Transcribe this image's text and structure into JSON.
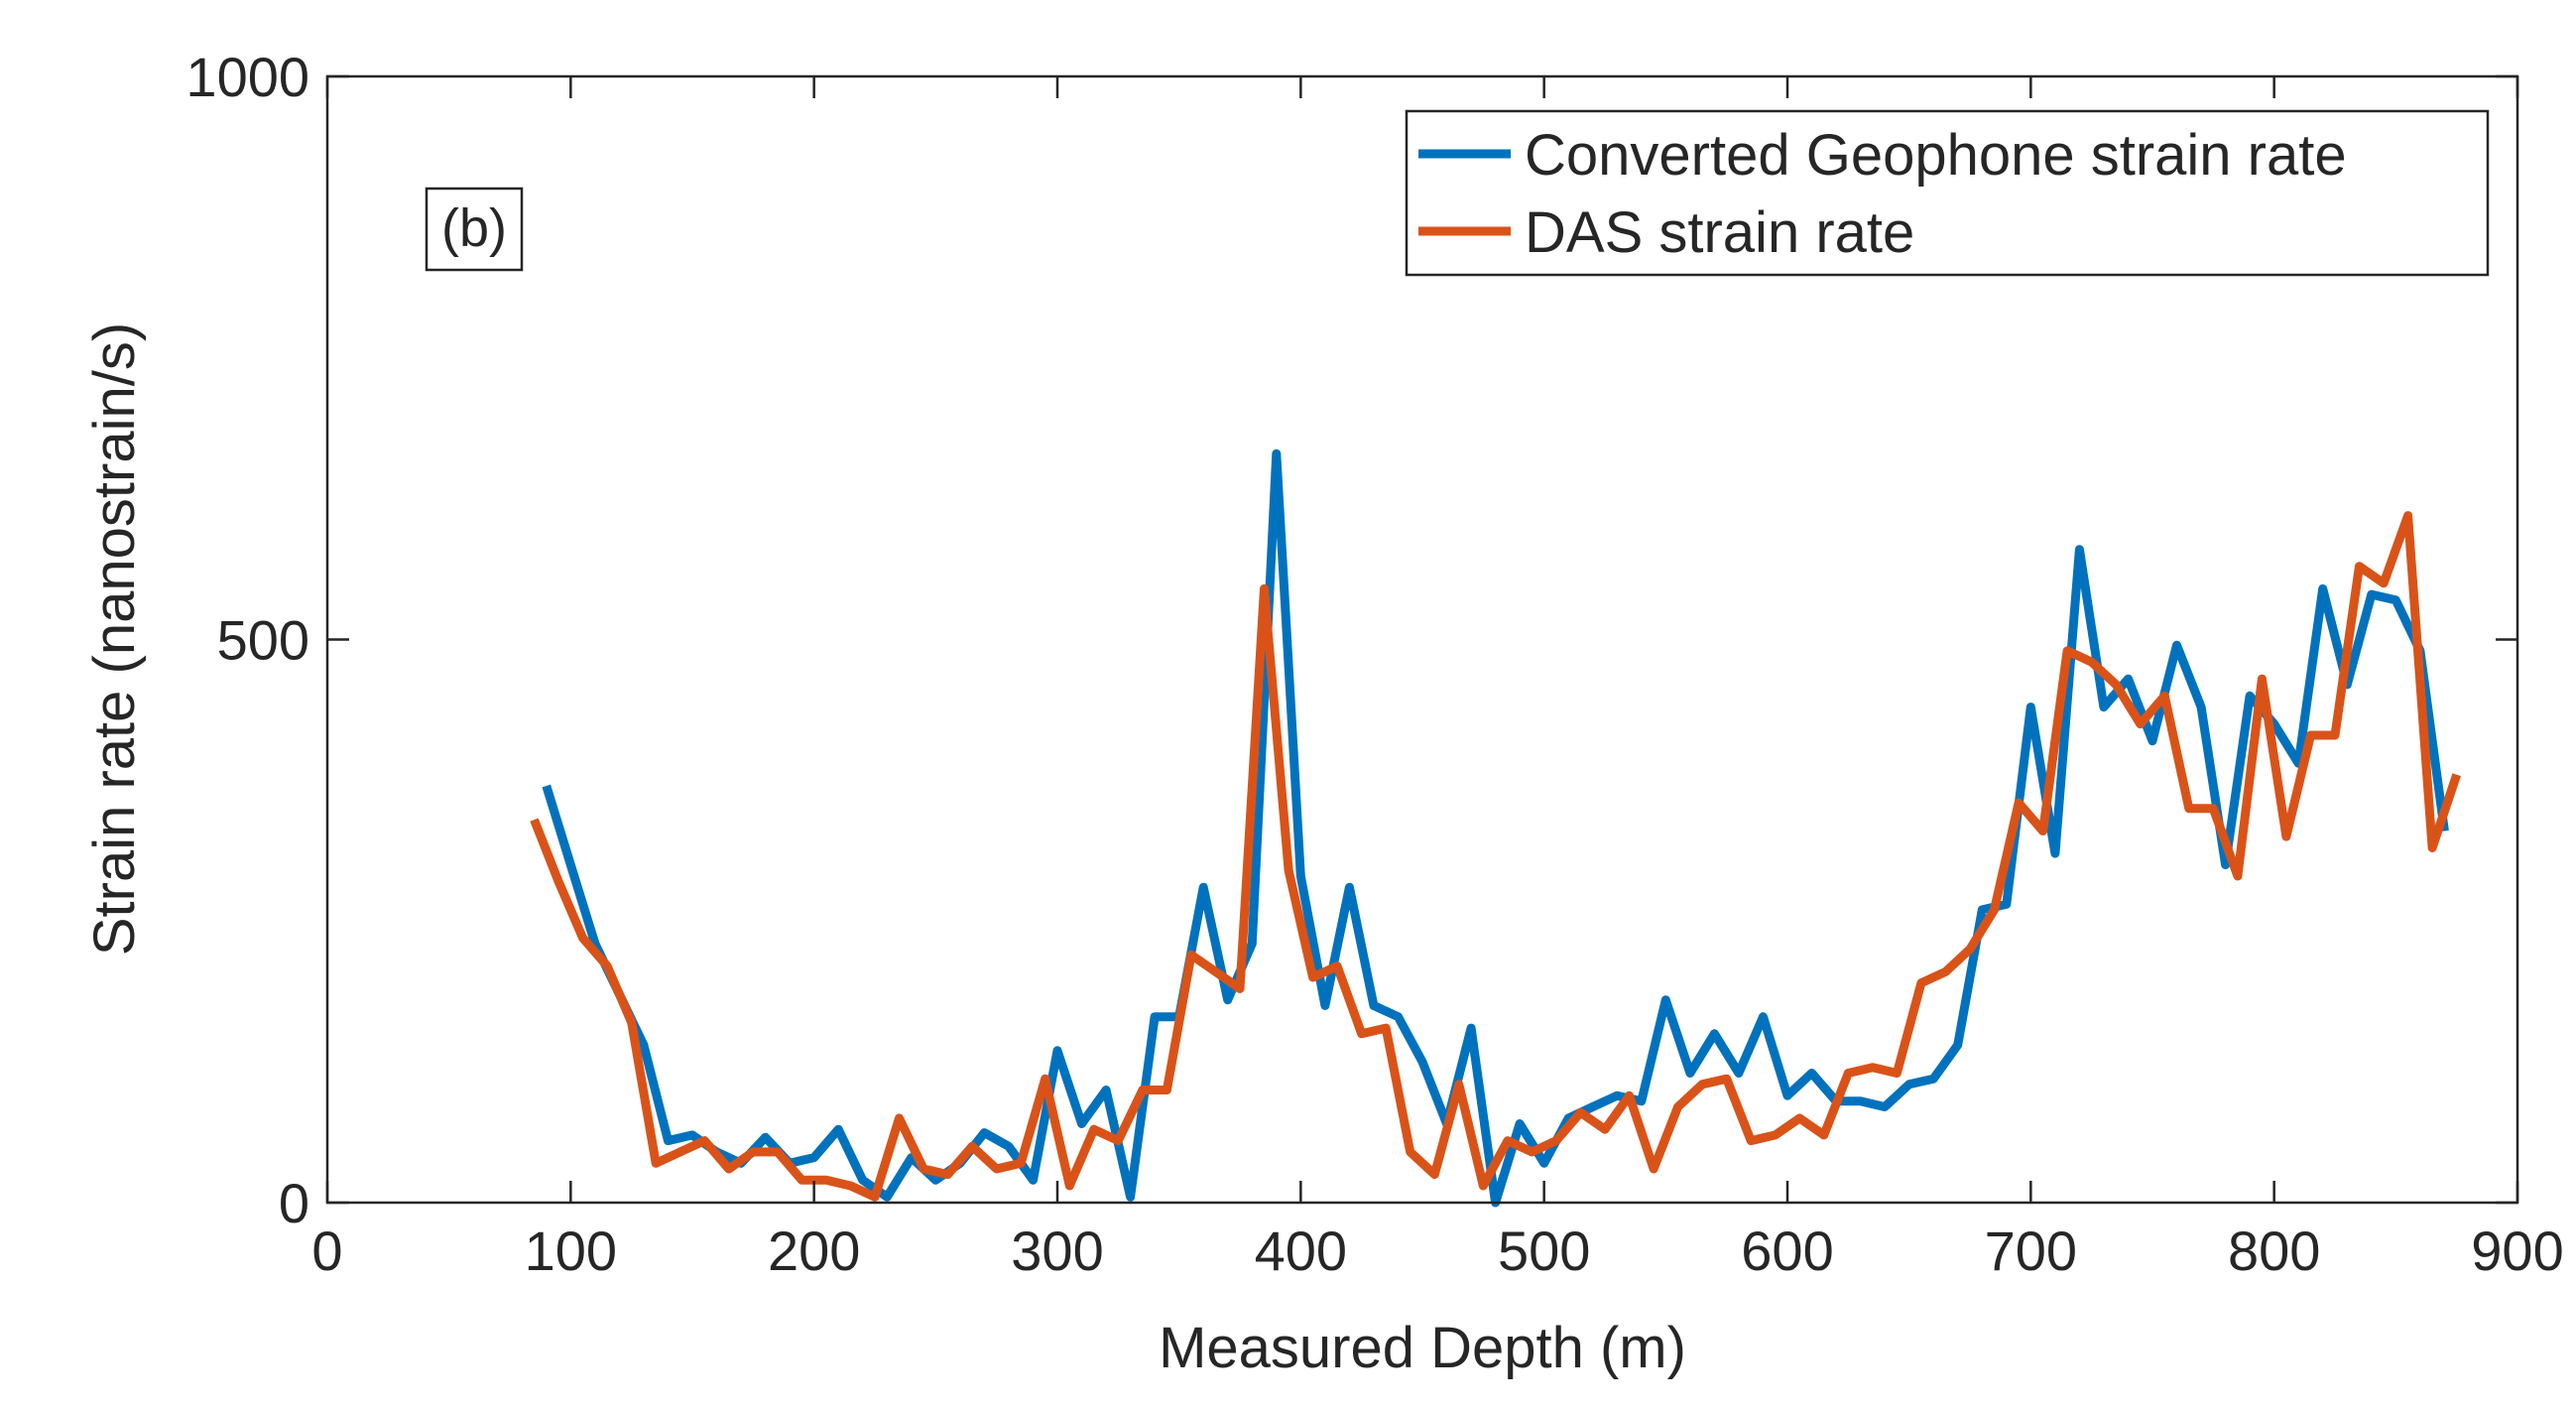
{
  "chart_data": {
    "type": "line",
    "title": "",
    "xlabel": "Measured Depth (m)",
    "ylabel": "Strain rate (nanostrain/s)",
    "xlim": [
      0,
      900
    ],
    "ylim": [
      0,
      1000
    ],
    "xticks": [
      0,
      100,
      200,
      300,
      400,
      500,
      600,
      700,
      800,
      900
    ],
    "yticks": [
      0,
      500,
      1000
    ],
    "annotation": "(b)",
    "legend_position": "top-right",
    "series": [
      {
        "name": "Converted Geophone strain rate",
        "color": "#0072BD",
        "x": [
          90,
          100,
          110,
          120,
          130,
          140,
          150,
          160,
          170,
          180,
          190,
          200,
          210,
          220,
          230,
          240,
          250,
          260,
          270,
          280,
          290,
          300,
          310,
          320,
          330,
          340,
          350,
          360,
          370,
          380,
          390,
          400,
          410,
          420,
          430,
          440,
          450,
          460,
          470,
          480,
          490,
          500,
          510,
          520,
          530,
          540,
          550,
          560,
          570,
          580,
          590,
          600,
          610,
          620,
          630,
          640,
          650,
          660,
          670,
          680,
          690,
          700,
          710,
          720,
          730,
          740,
          750,
          760,
          770,
          780,
          790,
          800,
          810,
          820,
          830,
          840,
          850,
          860,
          870
        ],
        "y": [
          370,
          300,
          230,
          185,
          140,
          55,
          60,
          45,
          35,
          58,
          35,
          40,
          65,
          20,
          5,
          40,
          20,
          35,
          62,
          50,
          20,
          135,
          70,
          100,
          5,
          165,
          165,
          280,
          180,
          230,
          665,
          290,
          175,
          280,
          175,
          165,
          125,
          70,
          155,
          0,
          70,
          35,
          75,
          85,
          95,
          90,
          180,
          115,
          150,
          115,
          165,
          95,
          115,
          90,
          90,
          85,
          105,
          110,
          140,
          260,
          265,
          440,
          310,
          580,
          440,
          465,
          410,
          495,
          440,
          300,
          450,
          425,
          390,
          545,
          460,
          540,
          535,
          490,
          330
        ]
      },
      {
        "name": "DAS strain rate",
        "color": "#D95319",
        "x": [
          85,
          95,
          105,
          115,
          125,
          135,
          145,
          155,
          165,
          175,
          185,
          195,
          205,
          215,
          225,
          235,
          245,
          255,
          265,
          275,
          285,
          295,
          305,
          315,
          325,
          335,
          345,
          355,
          365,
          375,
          385,
          395,
          405,
          415,
          425,
          435,
          445,
          455,
          465,
          475,
          485,
          495,
          505,
          515,
          525,
          535,
          545,
          555,
          565,
          575,
          585,
          595,
          605,
          615,
          625,
          635,
          645,
          655,
          665,
          675,
          685,
          695,
          705,
          715,
          725,
          735,
          745,
          755,
          765,
          775,
          785,
          795,
          805,
          815,
          825,
          835,
          845,
          855,
          865,
          875
        ],
        "y": [
          340,
          285,
          235,
          210,
          160,
          35,
          45,
          55,
          30,
          45,
          45,
          20,
          20,
          15,
          5,
          75,
          30,
          25,
          50,
          30,
          35,
          110,
          15,
          65,
          55,
          100,
          100,
          220,
          205,
          190,
          545,
          295,
          200,
          210,
          150,
          155,
          45,
          25,
          105,
          15,
          55,
          45,
          55,
          80,
          65,
          95,
          30,
          85,
          105,
          110,
          55,
          60,
          75,
          60,
          115,
          120,
          115,
          195,
          205,
          225,
          260,
          355,
          330,
          490,
          480,
          460,
          425,
          450,
          350,
          350,
          290,
          465,
          325,
          415,
          415,
          565,
          550,
          610,
          315,
          380
        ]
      }
    ]
  }
}
